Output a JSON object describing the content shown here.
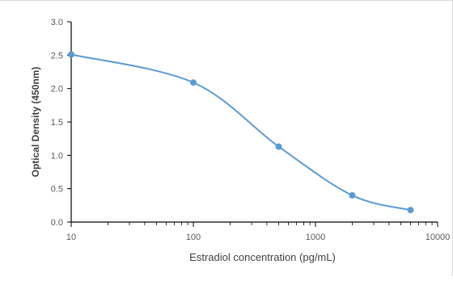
{
  "chart_data": {
    "type": "line",
    "title": "",
    "xlabel": "Estradiol concentration (pg/mL)",
    "ylabel": "Optical Density (450nm)",
    "x_scale": "log",
    "xlim": [
      10,
      10000
    ],
    "ylim": [
      0,
      3.0
    ],
    "x_ticks": [
      "10",
      "100",
      "1000",
      "10000"
    ],
    "y_ticks": [
      "0.0",
      "0.5",
      "1.0",
      "1.5",
      "2.0",
      "2.5",
      "3.0"
    ],
    "grid": false,
    "legend": "none",
    "series": [
      {
        "color": "#5b9bd5",
        "x": [
          10,
          100,
          500,
          2000,
          6000
        ],
        "y": [
          2.51,
          2.09,
          1.13,
          0.4,
          0.18
        ]
      }
    ]
  }
}
